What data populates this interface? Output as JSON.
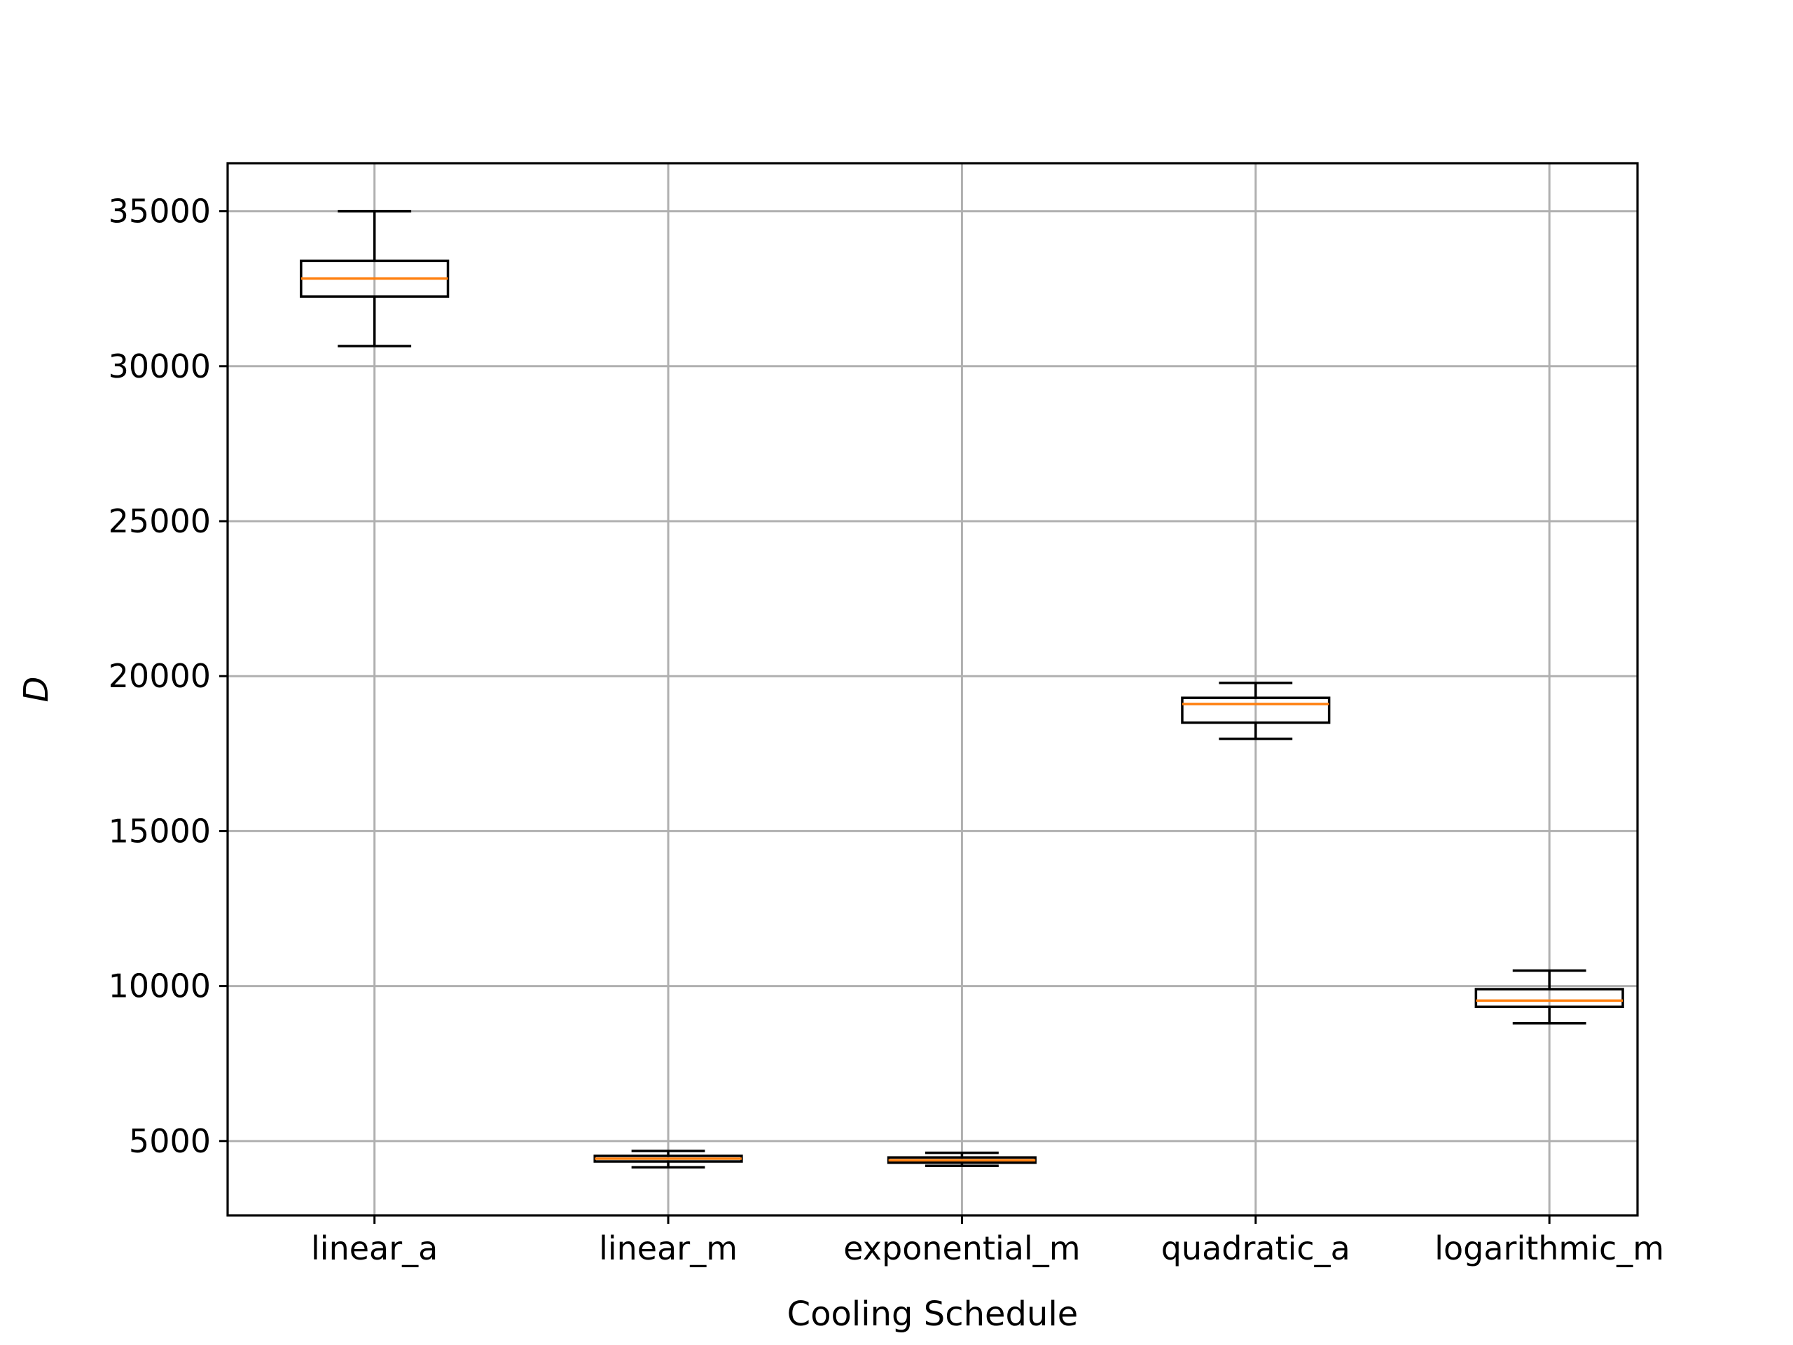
{
  "chart_data": {
    "type": "boxplot",
    "title": "",
    "xlabel": "Cooling Schedule",
    "ylabel": "D",
    "ylim": [
      2600,
      36550
    ],
    "yticks": [
      5000,
      10000,
      15000,
      20000,
      25000,
      30000,
      35000
    ],
    "ytick_labels": [
      "5000",
      "10000",
      "15000",
      "20000",
      "25000",
      "30000",
      "35000"
    ],
    "grid": true,
    "categories": [
      "linear_a",
      "linear_m",
      "exponential_m",
      "quadratic_a",
      "logarithmic_m"
    ],
    "boxes": [
      {
        "category": "linear_a",
        "whisker_low": 30650,
        "q1": 32250,
        "median": 32830,
        "q3": 33400,
        "whisker_high": 35000
      },
      {
        "category": "linear_m",
        "whisker_low": 4150,
        "q1": 4340,
        "median": 4430,
        "q3": 4520,
        "whisker_high": 4680
      },
      {
        "category": "exponential_m",
        "whisker_low": 4200,
        "q1": 4300,
        "median": 4380,
        "q3": 4470,
        "whisker_high": 4620
      },
      {
        "category": "quadratic_a",
        "whisker_low": 17980,
        "q1": 18500,
        "median": 19100,
        "q3": 19300,
        "whisker_high": 19780
      },
      {
        "category": "logarithmic_m",
        "whisker_low": 8800,
        "q1": 9330,
        "median": 9530,
        "q3": 9900,
        "whisker_high": 10500
      }
    ],
    "colors": {
      "box": "#000000",
      "median": "#ff7f0e",
      "grid": "#b0b0b0"
    }
  }
}
